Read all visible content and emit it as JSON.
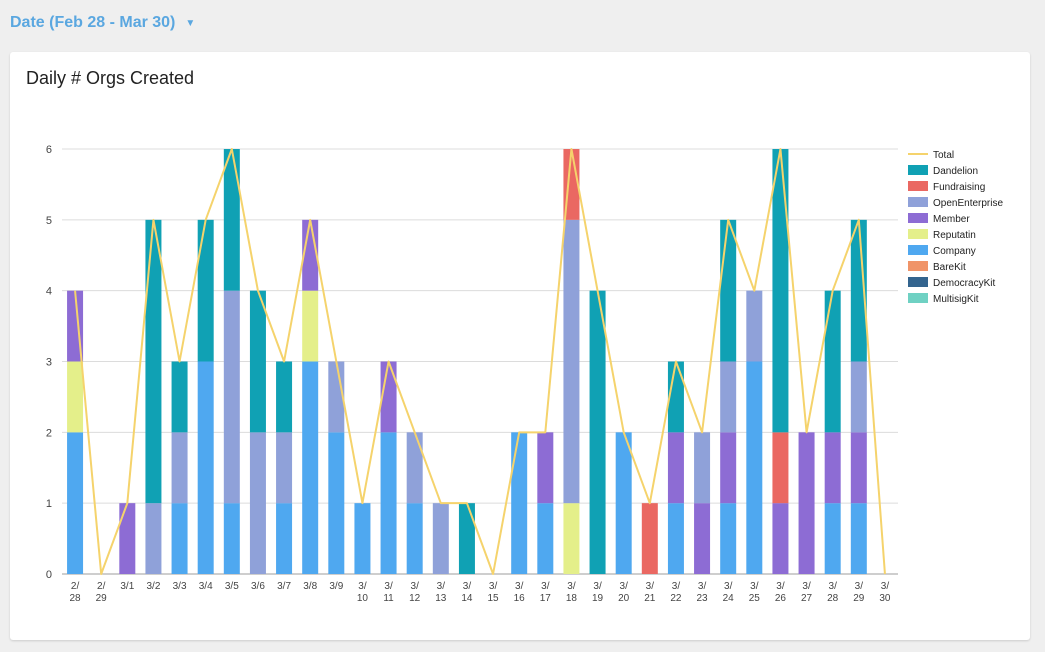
{
  "filter": {
    "label": "Date (Feb 28 - Mar 30)",
    "caret": "▼"
  },
  "chart_data": {
    "type": "bar",
    "title": "Daily # Orgs Created",
    "stacked": true,
    "xlabel": "",
    "ylabel": "",
    "ylim": [
      0,
      6
    ],
    "yticks": [
      0,
      1,
      2,
      3,
      4,
      5,
      6
    ],
    "grid": true,
    "legend_position": "right",
    "categories": [
      [
        "2/",
        "28"
      ],
      [
        "2/",
        "29"
      ],
      [
        "3/1"
      ],
      [
        "3/2"
      ],
      [
        "3/3"
      ],
      [
        "3/4"
      ],
      [
        "3/5"
      ],
      [
        "3/6"
      ],
      [
        "3/7"
      ],
      [
        "3/8"
      ],
      [
        "3/9"
      ],
      [
        "3/",
        "10"
      ],
      [
        "3/",
        "11"
      ],
      [
        "3/",
        "12"
      ],
      [
        "3/",
        "13"
      ],
      [
        "3/",
        "14"
      ],
      [
        "3/",
        "15"
      ],
      [
        "3/",
        "16"
      ],
      [
        "3/",
        "17"
      ],
      [
        "3/",
        "18"
      ],
      [
        "3/",
        "19"
      ],
      [
        "3/",
        "20"
      ],
      [
        "3/",
        "21"
      ],
      [
        "3/",
        "22"
      ],
      [
        "3/",
        "23"
      ],
      [
        "3/",
        "24"
      ],
      [
        "3/",
        "25"
      ],
      [
        "3/",
        "26"
      ],
      [
        "3/",
        "27"
      ],
      [
        "3/",
        "28"
      ],
      [
        "3/",
        "29"
      ],
      [
        "3/",
        "30"
      ]
    ],
    "series": [
      {
        "name": "Company",
        "color": "#4fa8f0",
        "values": [
          2,
          0,
          0,
          0,
          1,
          3,
          1,
          0,
          1,
          3,
          2,
          1,
          2,
          1,
          0,
          0,
          0,
          2,
          1,
          0,
          0,
          2,
          0,
          1,
          0,
          1,
          3,
          0,
          0,
          1,
          1,
          0
        ]
      },
      {
        "name": "Reputatin",
        "color": "#e4ef8a",
        "values": [
          1,
          0,
          0,
          0,
          0,
          0,
          0,
          0,
          0,
          1,
          0,
          0,
          0,
          0,
          0,
          0,
          0,
          0,
          0,
          1,
          0,
          0,
          0,
          0,
          0,
          0,
          0,
          0,
          0,
          0,
          0,
          0
        ]
      },
      {
        "name": "Member",
        "color": "#8d6cd4",
        "values": [
          1,
          0,
          1,
          0,
          0,
          0,
          0,
          0,
          0,
          1,
          0,
          0,
          1,
          0,
          0,
          0,
          0,
          0,
          1,
          0,
          0,
          0,
          0,
          1,
          1,
          1,
          0,
          1,
          2,
          1,
          1,
          0
        ]
      },
      {
        "name": "OpenEnterprise",
        "color": "#8fa1d9",
        "values": [
          0,
          0,
          0,
          1,
          1,
          0,
          3,
          2,
          1,
          0,
          1,
          0,
          0,
          1,
          1,
          0,
          0,
          0,
          0,
          4,
          0,
          0,
          0,
          0,
          1,
          1,
          1,
          0,
          0,
          0,
          1,
          0
        ]
      },
      {
        "name": "Fundraising",
        "color": "#ea6862",
        "values": [
          0,
          0,
          0,
          0,
          0,
          0,
          0,
          0,
          0,
          0,
          0,
          0,
          0,
          0,
          0,
          0,
          0,
          0,
          0,
          1,
          0,
          0,
          1,
          0,
          0,
          0,
          0,
          1,
          0,
          0,
          0,
          0
        ]
      },
      {
        "name": "Dandelion",
        "color": "#10a1b4",
        "values": [
          0,
          0,
          0,
          4,
          1,
          2,
          2,
          2,
          1,
          0,
          0,
          0,
          0,
          0,
          0,
          1,
          0,
          0,
          0,
          0,
          4,
          0,
          0,
          1,
          0,
          2,
          0,
          4,
          0,
          2,
          2,
          0
        ]
      },
      {
        "name": "BareKit",
        "color": "#f09468",
        "values": [
          0,
          0,
          0,
          0,
          0,
          0,
          0,
          0,
          0,
          0,
          0,
          0,
          0,
          0,
          0,
          0,
          0,
          0,
          0,
          0,
          0,
          0,
          0,
          0,
          0,
          0,
          0,
          0,
          0,
          0,
          0,
          0
        ]
      },
      {
        "name": "DemocracyKit",
        "color": "#33648e",
        "values": [
          0,
          0,
          0,
          0,
          0,
          0,
          0,
          0,
          0,
          0,
          0,
          0,
          0,
          0,
          0,
          0,
          0,
          0,
          0,
          0,
          0,
          0,
          0,
          0,
          0,
          0,
          0,
          0,
          0,
          0,
          0,
          0
        ]
      },
      {
        "name": "MultisigKit",
        "color": "#6fd1c3",
        "values": [
          0,
          0,
          0,
          0,
          0,
          0,
          0,
          0,
          0,
          0,
          0,
          0,
          0,
          0,
          0,
          0,
          0,
          0,
          0,
          0,
          0,
          0,
          0,
          0,
          0,
          0,
          0,
          0,
          0,
          0,
          0,
          0
        ]
      }
    ],
    "line": {
      "name": "Total",
      "color": "#f5d36c",
      "values": [
        4,
        0,
        1,
        5,
        3,
        5,
        6,
        4,
        3,
        5,
        3,
        1,
        3,
        2,
        1,
        1,
        0,
        2,
        2,
        6,
        4,
        2,
        1,
        3,
        2,
        5,
        4,
        6,
        2,
        4,
        5,
        0
      ]
    },
    "legend": [
      "Total",
      "Dandelion",
      "Fundraising",
      "OpenEnterprise",
      "Member",
      "Reputatin",
      "Company",
      "BareKit",
      "DemocracyKit",
      "MultisigKit"
    ]
  }
}
